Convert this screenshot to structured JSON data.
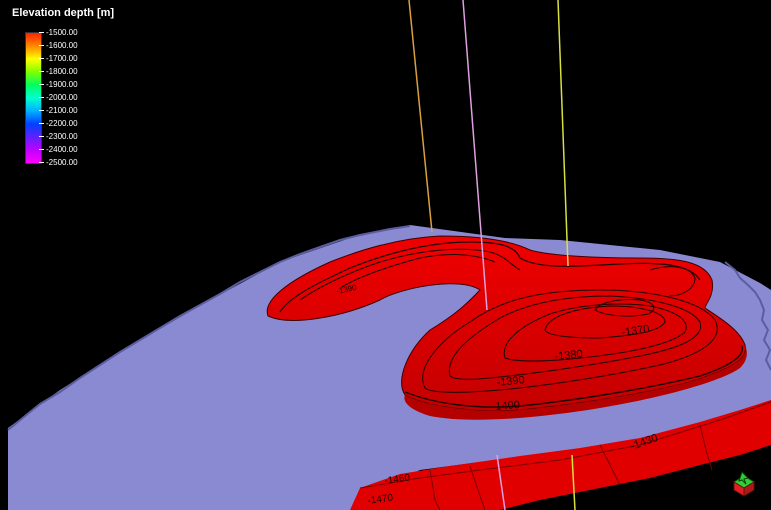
{
  "legend": {
    "title": "Elevation depth [m]",
    "labels": [
      "-1500.00",
      "-1600.00",
      "-1700.00",
      "-1800.00",
      "-1900.00",
      "-2000.00",
      "-2100.00",
      "-2200.00",
      "-2300.00",
      "-2400.00",
      "-2500.00"
    ],
    "gradient_colors": [
      "#ff2200",
      "#ff8800",
      "#ffff00",
      "#80ff00",
      "#00ff60",
      "#00ffd0",
      "#00b0ff",
      "#0040ff",
      "#6020ff",
      "#c000ff",
      "#ff00ff"
    ]
  },
  "contours": {
    "c1370": "-1370",
    "c1380": "-1380",
    "c1390": "-1390",
    "c1400": "-1400",
    "c1430": "-1430",
    "c1460": "-1460",
    "c1470": "-1470",
    "c1390b": "-1390"
  },
  "colors": {
    "background": "#000000",
    "plane": "#8c8cd0",
    "surface": "#e50000",
    "surface_dark": "#b00000",
    "well_orange": "#d9a040",
    "well_pink": "#e0a0e0",
    "well_yellow": "#d8e040"
  }
}
